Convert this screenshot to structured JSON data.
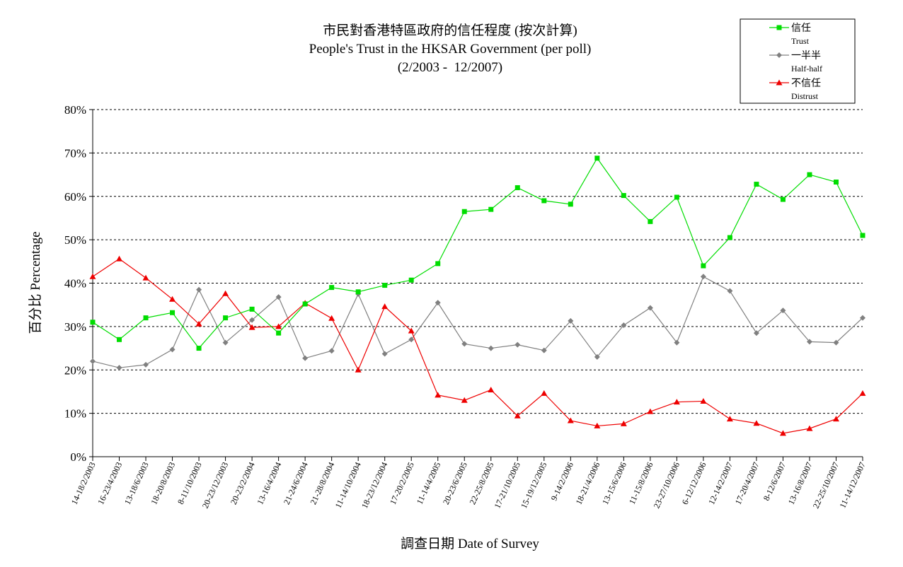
{
  "chart_data": {
    "type": "line",
    "title": "市民對香港特區政府的信任程度 (按次計算)",
    "subtitle": "People's Trust in the HKSAR Government (per poll)",
    "date_range": "(2/2003 -  12/2007)",
    "xlabel": "調查日期 Date of Survey",
    "ylabel": "百分比 Percentage",
    "ylim": [
      0,
      80
    ],
    "y_ticks": [
      "0%",
      "10%",
      "20%",
      "30%",
      "40%",
      "50%",
      "60%",
      "70%",
      "80%"
    ],
    "grid": true,
    "legend_position": "top-right",
    "categories": [
      "14-18/2/2003",
      "16-23/4/2003",
      "13-18/6/2003",
      "18-20/8/2003",
      "8-11/10/2003",
      "20-23/12/2003",
      "20-23/2/2004",
      "13-16/4/2004",
      "21-24/6/2004",
      "21-28/8/2004",
      "11-14/10/2004",
      "18-23/12/2004",
      "17-20/2/2005",
      "11-14/4/2005",
      "20-23/6/2005",
      "22-25/8/2005",
      "17-21/10/2005",
      "15-19/12/2005",
      "9-14/2/2006",
      "18-21/4/2006",
      "13-15/6/2006",
      "11-15/8/2006",
      "23-27/10/2006",
      "6-12/12/2006",
      "12-14/2/2007",
      "17-20/4/2007",
      "8-12/6/2007",
      "13-16/8/2007",
      "22-25/10/2007",
      "11-14/12/2007"
    ],
    "series": [
      {
        "name": "信任",
        "name_en": "Trust",
        "color": "#00dd00",
        "marker": "square",
        "values": [
          31.0,
          27.0,
          32.0,
          33.2,
          25.0,
          32.0,
          34.0,
          28.5,
          35.2,
          39.0,
          38.0,
          39.5,
          40.7,
          44.5,
          56.5,
          57.0,
          62.0,
          59.0,
          58.2,
          68.8,
          60.2,
          54.2,
          59.8,
          44.0,
          50.5,
          62.8,
          59.3,
          65.0,
          63.3,
          51.0
        ]
      },
      {
        "name": "一半半",
        "name_en": "Half-half",
        "color": "#808080",
        "marker": "diamond",
        "values": [
          22.0,
          20.5,
          21.2,
          24.7,
          38.5,
          26.3,
          31.5,
          36.8,
          22.7,
          24.4,
          37.5,
          23.7,
          27.0,
          35.5,
          26.0,
          25.0,
          25.8,
          24.5,
          31.3,
          23.0,
          30.3,
          34.3,
          26.3,
          41.5,
          38.2,
          28.5,
          33.7,
          26.5,
          26.3,
          32.0
        ]
      },
      {
        "name": "不信任",
        "name_en": "Distrust",
        "color": "#ee0000",
        "marker": "triangle",
        "values": [
          41.5,
          45.6,
          41.2,
          36.3,
          30.6,
          37.6,
          29.8,
          30.0,
          35.4,
          31.9,
          20.0,
          34.6,
          29.0,
          14.2,
          13.0,
          15.4,
          9.4,
          14.6,
          8.3,
          7.1,
          7.6,
          10.4,
          12.6,
          12.8,
          8.7,
          7.7,
          5.4,
          6.5,
          8.7,
          14.6
        ]
      }
    ]
  }
}
